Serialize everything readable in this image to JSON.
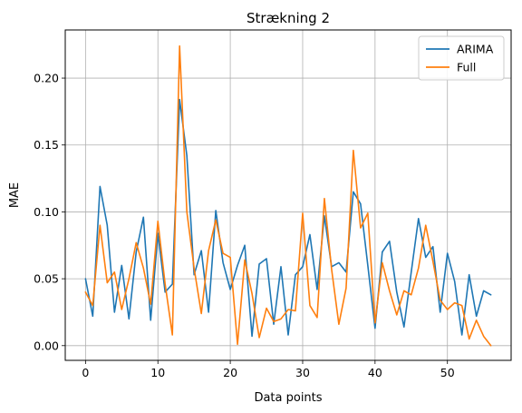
{
  "chart_data": {
    "type": "line",
    "title": "Strækning 2",
    "xlabel": "Data points",
    "ylabel": "MAE",
    "xlim": [
      -2.8,
      58.8
    ],
    "ylim": [
      -0.011,
      0.236
    ],
    "xticks": [
      0,
      10,
      20,
      30,
      40,
      50
    ],
    "yticks": [
      0.0,
      0.05,
      0.1,
      0.15,
      0.2
    ],
    "ytick_labels": [
      "0.00",
      "0.05",
      "0.10",
      "0.15",
      "0.20"
    ],
    "grid": true,
    "legend_position": "top-right",
    "series": [
      {
        "name": "ARIMA",
        "color": "#1f77b4",
        "x": [
          0,
          1,
          2,
          3,
          4,
          5,
          6,
          7,
          8,
          9,
          10,
          11,
          12,
          13,
          14,
          15,
          16,
          17,
          18,
          19,
          20,
          21,
          22,
          23,
          24,
          25,
          26,
          27,
          28,
          29,
          30,
          31,
          32,
          33,
          34,
          35,
          36,
          37,
          38,
          39,
          40,
          41,
          42,
          43,
          44,
          45,
          46,
          47,
          48,
          49,
          50,
          51,
          52,
          53,
          54,
          55,
          56
        ],
        "values": [
          0.05,
          0.022,
          0.119,
          0.09,
          0.025,
          0.06,
          0.02,
          0.07,
          0.096,
          0.019,
          0.084,
          0.04,
          0.046,
          0.184,
          0.142,
          0.053,
          0.071,
          0.025,
          0.101,
          0.062,
          0.042,
          0.06,
          0.075,
          0.007,
          0.061,
          0.065,
          0.016,
          0.059,
          0.008,
          0.053,
          0.059,
          0.083,
          0.042,
          0.097,
          0.059,
          0.062,
          0.055,
          0.115,
          0.106,
          0.06,
          0.013,
          0.07,
          0.078,
          0.04,
          0.014,
          0.055,
          0.095,
          0.066,
          0.074,
          0.025,
          0.069,
          0.048,
          0.008,
          0.053,
          0.022,
          0.041,
          0.038
        ]
      },
      {
        "name": "Full",
        "color": "#ff7f0e",
        "x": [
          0,
          1,
          2,
          3,
          4,
          5,
          6,
          7,
          8,
          9,
          10,
          11,
          12,
          13,
          14,
          15,
          16,
          17,
          18,
          19,
          20,
          21,
          22,
          23,
          24,
          25,
          26,
          27,
          28,
          29,
          30,
          31,
          32,
          33,
          34,
          35,
          36,
          37,
          38,
          39,
          40,
          41,
          42,
          43,
          44,
          45,
          46,
          47,
          48,
          49,
          50,
          51,
          52,
          53,
          54,
          55,
          56
        ],
        "values": [
          0.04,
          0.03,
          0.09,
          0.047,
          0.055,
          0.027,
          0.05,
          0.077,
          0.058,
          0.031,
          0.093,
          0.046,
          0.008,
          0.224,
          0.1,
          0.058,
          0.024,
          0.071,
          0.094,
          0.069,
          0.066,
          0.001,
          0.064,
          0.039,
          0.006,
          0.028,
          0.018,
          0.02,
          0.027,
          0.026,
          0.099,
          0.03,
          0.021,
          0.11,
          0.057,
          0.016,
          0.043,
          0.146,
          0.088,
          0.099,
          0.017,
          0.062,
          0.041,
          0.023,
          0.041,
          0.038,
          0.058,
          0.09,
          0.063,
          0.034,
          0.027,
          0.032,
          0.03,
          0.005,
          0.019,
          0.007,
          0.0
        ]
      }
    ]
  }
}
